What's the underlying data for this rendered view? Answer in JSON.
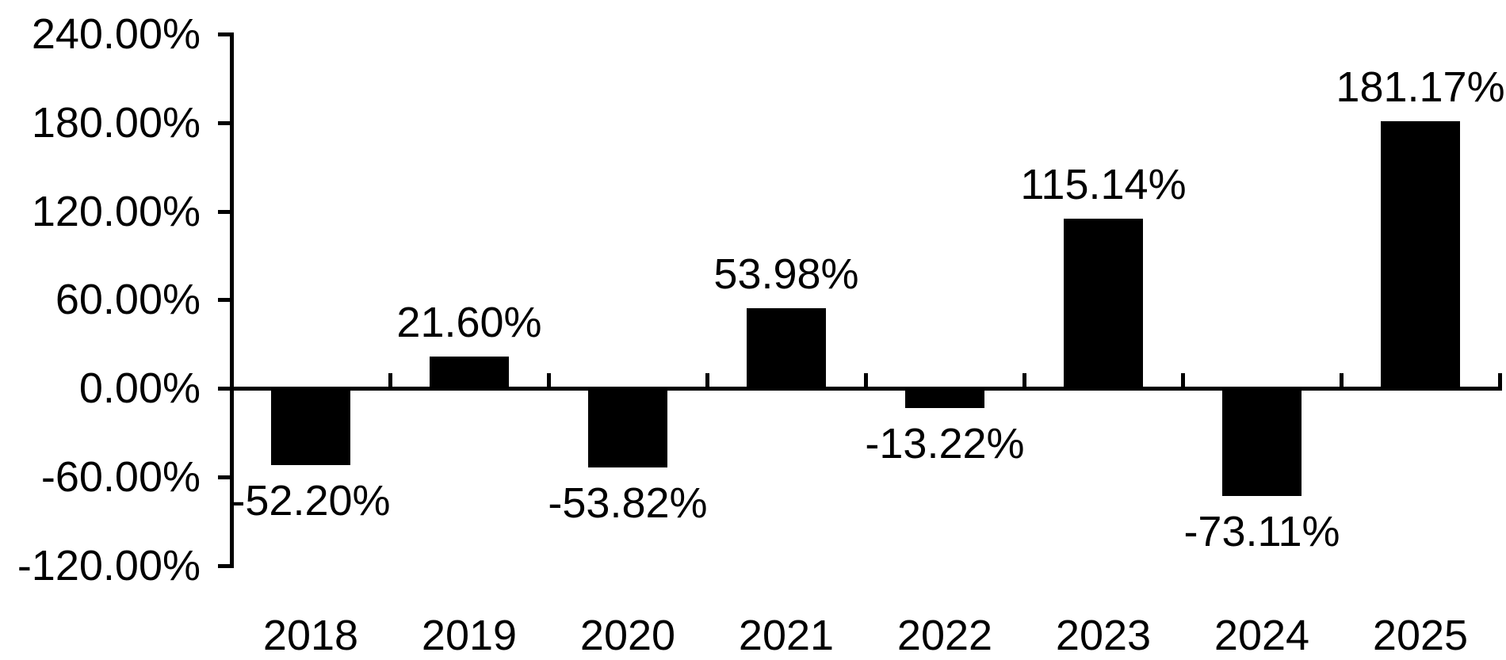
{
  "chart_data": {
    "type": "bar",
    "title": "",
    "xlabel": "",
    "ylabel": "",
    "categories": [
      "2018",
      "2019",
      "2020",
      "2021",
      "2022",
      "2023",
      "2024",
      "2025"
    ],
    "values": [
      -52.2,
      21.6,
      -53.82,
      53.98,
      -13.22,
      115.14,
      -73.11,
      181.17
    ],
    "value_labels": [
      "-52.20%",
      "21.60%",
      "-53.82%",
      "53.98%",
      "-13.22%",
      "115.14%",
      "-73.11%",
      "181.17%"
    ],
    "y_axis": {
      "tick_labels": [
        "240.00%",
        "180.00%",
        "120.00%",
        "60.00%",
        "0.00%",
        "-60.00%",
        "-120.00%"
      ],
      "tick_values": [
        240,
        180,
        120,
        60,
        0,
        -60,
        -120
      ],
      "ylim": [
        -120,
        240
      ]
    },
    "grid": false,
    "legend": false,
    "bar_color": "#000000",
    "axis_color": "#000000",
    "text_color": "#000000",
    "background_color": "#ffffff"
  }
}
